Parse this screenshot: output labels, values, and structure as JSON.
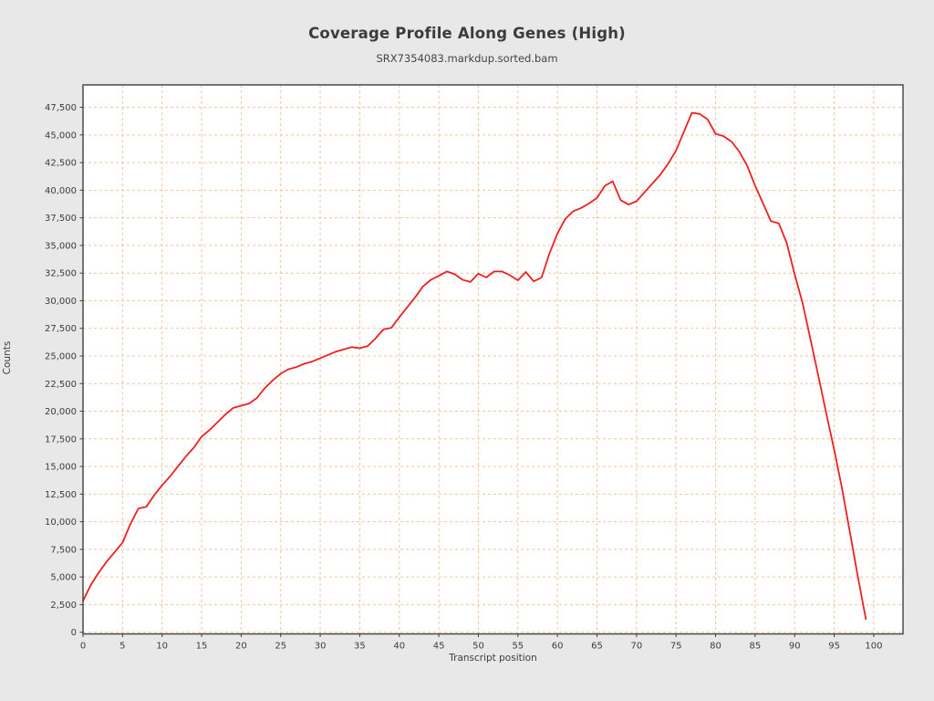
{
  "figure": {
    "title": "Coverage Profile Along Genes (High)",
    "subtitle": "SRX7354083.markdup.sorted.bam"
  },
  "chart_data": {
    "type": "line",
    "title": "Coverage Profile Along Genes (High)",
    "subtitle": "SRX7354083.markdup.sorted.bam",
    "xlabel": "Transcript position",
    "ylabel": "Counts",
    "legend": "none",
    "grid": true,
    "grid_style": "dashed",
    "grid_color": "#f6c49c",
    "line_color": "#ef2020",
    "spine_color": "#3f3f3f",
    "tick_label_color": "#3c3c3c",
    "background": "#e8e8e8",
    "plot_background": "#ffffff",
    "xlim": [
      0,
      103.7
    ],
    "ylim": [
      -150,
      49530
    ],
    "x_ticks": [
      0,
      5,
      10,
      15,
      20,
      25,
      30,
      35,
      40,
      45,
      50,
      55,
      60,
      65,
      70,
      75,
      80,
      85,
      90,
      95,
      100
    ],
    "y_ticks": [
      0,
      2500,
      5000,
      7500,
      10000,
      12500,
      15000,
      17500,
      20000,
      22500,
      25000,
      27500,
      30000,
      32500,
      35000,
      37500,
      40000,
      42500,
      45000,
      47500
    ],
    "series": [
      {
        "name": "coverage",
        "x": [
          0,
          1,
          2,
          3,
          4,
          5,
          6,
          7,
          8,
          9,
          10,
          11,
          12,
          13,
          14,
          15,
          16,
          17,
          18,
          19,
          20,
          21,
          22,
          23,
          24,
          25,
          26,
          27,
          28,
          29,
          30,
          31,
          32,
          33,
          34,
          35,
          36,
          37,
          38,
          39,
          40,
          41,
          42,
          43,
          44,
          45,
          46,
          47,
          48,
          49,
          50,
          51,
          52,
          53,
          54,
          55,
          56,
          57,
          58,
          59,
          60,
          61,
          62,
          63,
          64,
          65,
          66,
          67,
          68,
          69,
          70,
          71,
          72,
          73,
          74,
          75,
          76,
          77,
          78,
          79,
          80,
          81,
          82,
          83,
          84,
          85,
          86,
          87,
          88,
          89,
          90,
          91,
          92,
          93,
          94,
          95,
          96,
          97,
          98,
          99
        ],
        "values": [
          2850,
          4300,
          5400,
          6400,
          7250,
          8100,
          9800,
          11200,
          11350,
          12400,
          13300,
          14100,
          15000,
          15900,
          16700,
          17700,
          18300,
          19000,
          19700,
          20300,
          20500,
          20700,
          21200,
          22100,
          22800,
          23400,
          23800,
          24000,
          24300,
          24500,
          24800,
          25100,
          25400,
          25600,
          25800,
          25700,
          25900,
          26600,
          27400,
          27550,
          28500,
          29400,
          30300,
          31300,
          31900,
          32250,
          32650,
          32400,
          31900,
          31700,
          32450,
          32100,
          32650,
          32650,
          32300,
          31850,
          32600,
          31750,
          32100,
          34300,
          36100,
          37400,
          38100,
          38400,
          38800,
          39300,
          40400,
          40800,
          39100,
          38700,
          39000,
          39800,
          40600,
          41400,
          42400,
          43600,
          45300,
          47000,
          46900,
          46400,
          45100,
          44900,
          44400,
          43500,
          42200,
          40400,
          38800,
          37200,
          37000,
          35200,
          32400,
          29800,
          26500,
          23200,
          19800,
          16500,
          13000,
          9000,
          5000,
          1200
        ]
      }
    ]
  }
}
